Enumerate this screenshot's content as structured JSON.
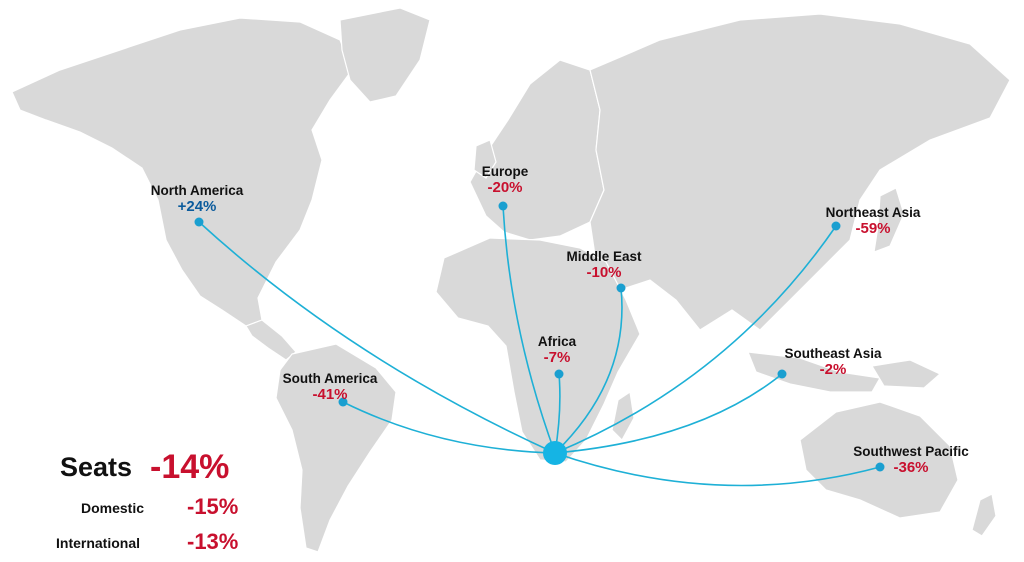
{
  "colors": {
    "land": "#d9d9d9",
    "route": "#1eb0d6",
    "negative": "#c8102e",
    "positive": "#0b5b9c",
    "hub": "#15b4e4"
  },
  "regions": [
    {
      "id": "north-america",
      "name": "North America",
      "value": "+24%",
      "trend": "positive"
    },
    {
      "id": "europe",
      "name": "Europe",
      "value": "-20%",
      "trend": "negative"
    },
    {
      "id": "middle-east",
      "name": "Middle East",
      "value": "-10%",
      "trend": "negative"
    },
    {
      "id": "africa",
      "name": "Africa",
      "value": "-7%",
      "trend": "negative"
    },
    {
      "id": "northeast-asia",
      "name": "Northeast Asia",
      "value": "-59%",
      "trend": "negative"
    },
    {
      "id": "southeast-asia",
      "name": "Southeast Asia",
      "value": "-2%",
      "trend": "negative"
    },
    {
      "id": "south-america",
      "name": "South America",
      "value": "-41%",
      "trend": "negative"
    },
    {
      "id": "southwest-pacific",
      "name": "Southwest Pacific",
      "value": "-36%",
      "trend": "negative"
    }
  ],
  "summary": {
    "seats_label": "Seats",
    "seats_value": "-14%",
    "domestic_label": "Domestic",
    "domestic_value": "-15%",
    "international_label": "International",
    "international_value": "-13%"
  }
}
